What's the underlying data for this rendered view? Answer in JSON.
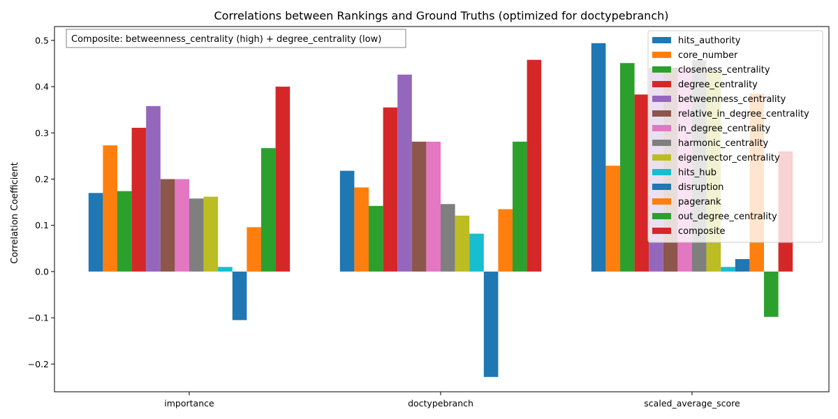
{
  "chart_data": {
    "type": "bar",
    "title": "Correlations between Rankings and Ground Truths (optimized for doctypebranch)",
    "xlabel": "",
    "ylabel": "Correlation Coefficient",
    "ylim": [
      -0.26,
      0.53
    ],
    "yticks": [
      -0.2,
      -0.1,
      0.0,
      0.1,
      0.2,
      0.3,
      0.4,
      0.5
    ],
    "ytick_labels": [
      "−0.2",
      "−0.1",
      "0.0",
      "0.1",
      "0.2",
      "0.3",
      "0.4",
      "0.5"
    ],
    "grid": false,
    "legend_position": "top-right",
    "annotation": "Composite: betweenness_centrality (high) + degree_centrality (low)",
    "categories": [
      "importance",
      "doctypebranch",
      "scaled_average_score"
    ],
    "series": [
      {
        "name": "hits_authority",
        "color": "#1f77b4",
        "values": [
          0.17,
          0.218,
          0.494
        ]
      },
      {
        "name": "core_number",
        "color": "#ff7f0e",
        "values": [
          0.273,
          0.182,
          0.229
        ]
      },
      {
        "name": "closeness_centrality",
        "color": "#2ca02c",
        "values": [
          0.174,
          0.142,
          0.451
        ]
      },
      {
        "name": "degree_centrality",
        "color": "#d62728",
        "values": [
          0.311,
          0.355,
          0.383
        ]
      },
      {
        "name": "betweenness_centrality",
        "color": "#9467bd",
        "values": [
          0.358,
          0.426,
          0.441
        ]
      },
      {
        "name": "relative_in_degree_centrality",
        "color": "#8c564b",
        "values": [
          0.2,
          0.281,
          0.441
        ]
      },
      {
        "name": "in_degree_centrality",
        "color": "#e377c2",
        "values": [
          0.2,
          0.281,
          0.441
        ]
      },
      {
        "name": "harmonic_centrality",
        "color": "#7f7f7f",
        "values": [
          0.158,
          0.146,
          0.457
        ]
      },
      {
        "name": "eigenvector_centrality",
        "color": "#bcbd22",
        "values": [
          0.162,
          0.121,
          0.433
        ]
      },
      {
        "name": "hits_hub",
        "color": "#17becf",
        "values": [
          0.01,
          0.082,
          0.01
        ]
      },
      {
        "name": "disruption",
        "color": "#1f77b4",
        "values": [
          -0.105,
          -0.228,
          0.027
        ]
      },
      {
        "name": "pagerank",
        "color": "#ff7f0e",
        "values": [
          0.096,
          0.135,
          0.385
        ]
      },
      {
        "name": "out_degree_centrality",
        "color": "#2ca02c",
        "values": [
          0.267,
          0.281,
          -0.098
        ]
      },
      {
        "name": "composite",
        "color": "#d62728",
        "values": [
          0.4,
          0.458,
          0.26
        ]
      }
    ]
  }
}
